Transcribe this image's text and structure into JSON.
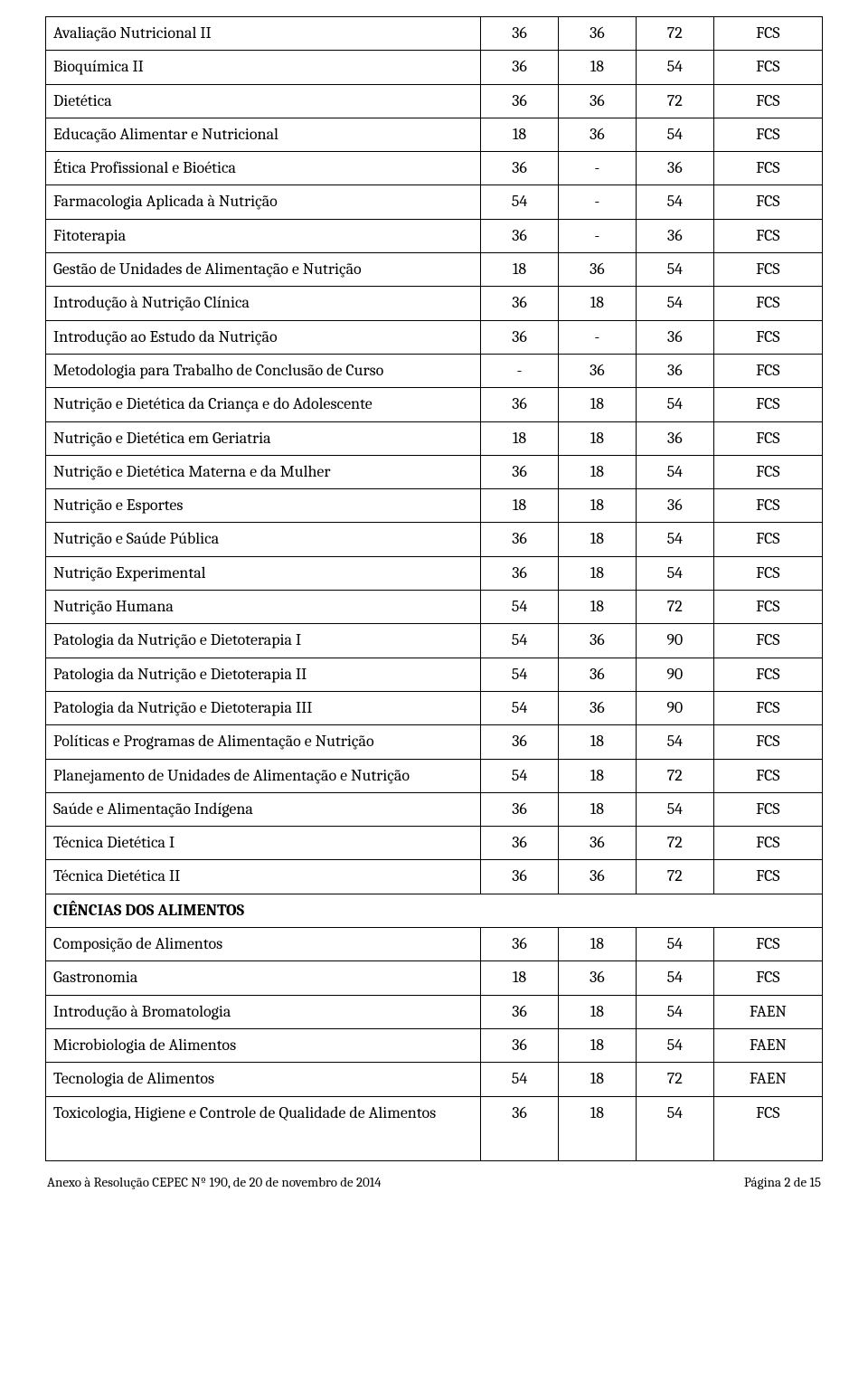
{
  "colors": {
    "border": "#000000",
    "text": "#000000",
    "background": "#ffffff"
  },
  "table": {
    "column_widths_pct": [
      56,
      10,
      10,
      10,
      14
    ],
    "fontsize": 18,
    "columns": [
      "name",
      "col_a",
      "col_b",
      "col_c",
      "col_d"
    ]
  },
  "rows": [
    {
      "name": "Avaliação Nutricional II",
      "a": "36",
      "b": "36",
      "c": "72",
      "d": "FCS"
    },
    {
      "name": "Bioquímica II",
      "a": "36",
      "b": "18",
      "c": "54",
      "d": "FCS"
    },
    {
      "name": "Dietética",
      "a": "36",
      "b": "36",
      "c": "72",
      "d": "FCS"
    },
    {
      "name": "Educação Alimentar e Nutricional",
      "a": "18",
      "b": "36",
      "c": "54",
      "d": "FCS"
    },
    {
      "name": "Ética Profissional e Bioética",
      "a": "36",
      "b": "-",
      "c": "36",
      "d": "FCS"
    },
    {
      "name": "Farmacologia Aplicada à Nutrição",
      "a": "54",
      "b": "-",
      "c": "54",
      "d": "FCS"
    },
    {
      "name": "Fitoterapia",
      "a": "36",
      "b": "-",
      "c": "36",
      "d": "FCS"
    },
    {
      "name": "Gestão de Unidades de Alimentação e Nutrição",
      "a": "18",
      "b": "36",
      "c": "54",
      "d": "FCS"
    },
    {
      "name": "Introdução à Nutrição Clínica",
      "a": "36",
      "b": "18",
      "c": "54",
      "d": "FCS"
    },
    {
      "name": "Introdução ao Estudo da Nutrição",
      "a": "36",
      "b": "-",
      "c": "36",
      "d": "FCS"
    },
    {
      "name": "Metodologia para Trabalho de Conclusão de Curso",
      "a": "-",
      "b": "36",
      "c": "36",
      "d": "FCS"
    },
    {
      "name": "Nutrição e Dietética da Criança e do Adolescente",
      "a": "36",
      "b": "18",
      "c": "54",
      "d": "FCS"
    },
    {
      "name": "Nutrição e Dietética em Geriatria",
      "a": "18",
      "b": "18",
      "c": "36",
      "d": "FCS"
    },
    {
      "name": "Nutrição e Dietética Materna e da Mulher",
      "a": "36",
      "b": "18",
      "c": "54",
      "d": "FCS"
    },
    {
      "name": "Nutrição e Esportes",
      "a": "18",
      "b": "18",
      "c": "36",
      "d": "FCS"
    },
    {
      "name": "Nutrição e Saúde Pública",
      "a": "36",
      "b": "18",
      "c": "54",
      "d": "FCS"
    },
    {
      "name": "Nutrição Experimental",
      "a": "36",
      "b": "18",
      "c": "54",
      "d": "FCS"
    },
    {
      "name": "Nutrição Humana",
      "a": "54",
      "b": "18",
      "c": "72",
      "d": "FCS"
    },
    {
      "name": "Patologia da Nutrição e Dietoterapia I",
      "a": "54",
      "b": "36",
      "c": "90",
      "d": "FCS"
    },
    {
      "name": "Patologia da Nutrição e Dietoterapia II",
      "a": "54",
      "b": "36",
      "c": "90",
      "d": "FCS"
    },
    {
      "name": "Patologia da Nutrição e Dietoterapia III",
      "a": "54",
      "b": "36",
      "c": "90",
      "d": "FCS"
    },
    {
      "name": "Políticas e Programas de Alimentação e Nutrição",
      "a": "36",
      "b": "18",
      "c": "54",
      "d": "FCS"
    },
    {
      "name": "Planejamento de Unidades de Alimentação e Nutrição",
      "a": "54",
      "b": "18",
      "c": "72",
      "d": "FCS"
    },
    {
      "name": "Saúde e Alimentação Indígena",
      "a": "36",
      "b": "18",
      "c": "54",
      "d": "FCS"
    },
    {
      "name": "Técnica Dietética I",
      "a": "36",
      "b": "36",
      "c": "72",
      "d": "FCS"
    },
    {
      "name": "Técnica Dietética II",
      "a": "36",
      "b": "36",
      "c": "72",
      "d": "FCS"
    }
  ],
  "section_heading": "CIÊNCIAS DOS ALIMENTOS",
  "rows2": [
    {
      "name": "Composição de Alimentos",
      "a": "36",
      "b": "18",
      "c": "54",
      "d": "FCS"
    },
    {
      "name": "Gastronomia",
      "a": "18",
      "b": "36",
      "c": "54",
      "d": "FCS"
    },
    {
      "name": "Introdução à Bromatologia",
      "a": "36",
      "b": "18",
      "c": "54",
      "d": "FAEN"
    },
    {
      "name": "Microbiologia de Alimentos",
      "a": "36",
      "b": "18",
      "c": "54",
      "d": "FAEN"
    },
    {
      "name": "Tecnologia de Alimentos",
      "a": "54",
      "b": "18",
      "c": "72",
      "d": "FAEN"
    },
    {
      "name": "Toxicologia, Higiene e Controle de Qualidade de Alimentos",
      "a": "36",
      "b": "18",
      "c": "54",
      "d": "FCS",
      "multiline": true
    }
  ],
  "footer": {
    "left": "Anexo à Resolução CEPEC Nº 190, de 20 de novembro de 2014",
    "right": "Página 2 de 15",
    "fontsize": 15
  }
}
